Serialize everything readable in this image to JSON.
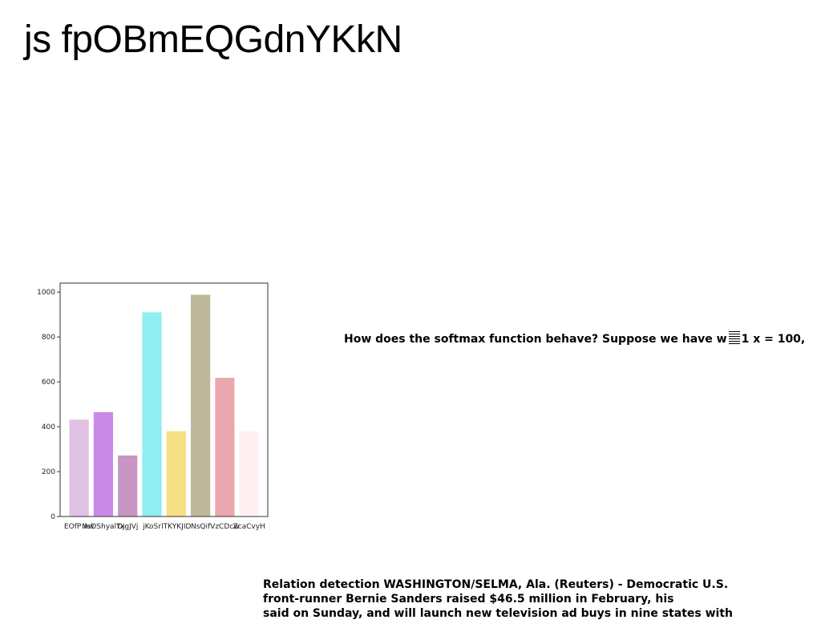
{
  "page": {
    "title": "js fpOBmEQGdnYKkN"
  },
  "question": {
    "text_before": "How does the softmax function behave? Suppose we have w",
    "text_after": "1 x = 100,"
  },
  "news": {
    "lines": [
      "Relation detection WASHINGTON/SELMA, Ala. (Reuters) - Democratic U.S.",
      "front-runner Bernie Sanders raised $46.5 million in February, his",
      "said on Sunday, and will launch new television ad buys in nine states with"
    ]
  },
  "chart_data": {
    "type": "bar",
    "categories": [
      "EOfP Aw",
      "NsDShyalYx",
      "DjgJVj",
      "jKoSr",
      "lTKYKJID",
      "NsQif",
      "VzCDcw",
      "ZcaCvyH"
    ],
    "values": [
      432,
      465,
      272,
      910,
      380,
      988,
      618,
      380
    ],
    "colors": [
      "#e2c2e4",
      "#c98ae7",
      "#c896c2",
      "#8feef0",
      "#f6e083",
      "#bdb899",
      "#eaa8ae",
      "#fef0f3"
    ],
    "ylim": [
      0,
      1040
    ],
    "yticks": [
      0,
      200,
      400,
      600,
      800,
      1000
    ],
    "title": "",
    "xlabel": "",
    "ylabel": ""
  }
}
